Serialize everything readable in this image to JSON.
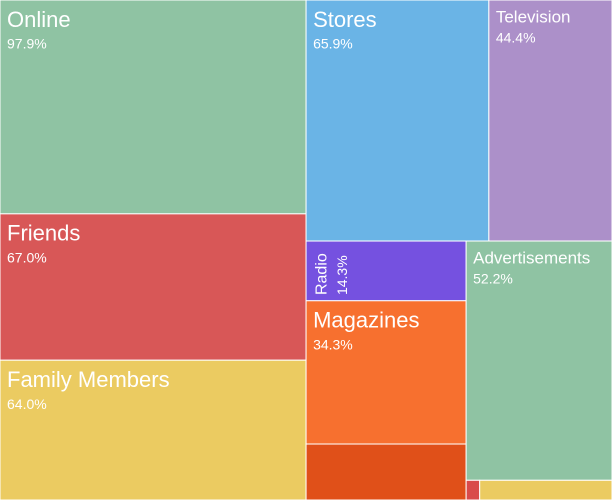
{
  "chart_data": {
    "type": "treemap",
    "categories": [
      "Online",
      "Friends",
      "Family Members",
      "Stores",
      "Television",
      "Radio",
      "Magazines",
      null,
      "Advertisements",
      null,
      null
    ],
    "values": [
      97.9,
      67.0,
      64.0,
      65.9,
      44.4,
      14.3,
      34.3,
      13.4,
      52.2,
      0.4,
      3.9
    ],
    "value_labels": [
      "97.9%",
      "67.0%",
      "64.0%",
      "65.9%",
      "44.4%",
      "14.3%",
      "34.3%",
      null,
      "52.2%",
      null,
      null
    ],
    "colors": [
      "#8fc3a3",
      "#d85757",
      "#ebcb61",
      "#6ab4e6",
      "#ac90c9",
      "#7551e0",
      "#f7702f",
      "#e05019",
      "#8fc3a3",
      "#d94a4a",
      "#ebcb61"
    ]
  }
}
